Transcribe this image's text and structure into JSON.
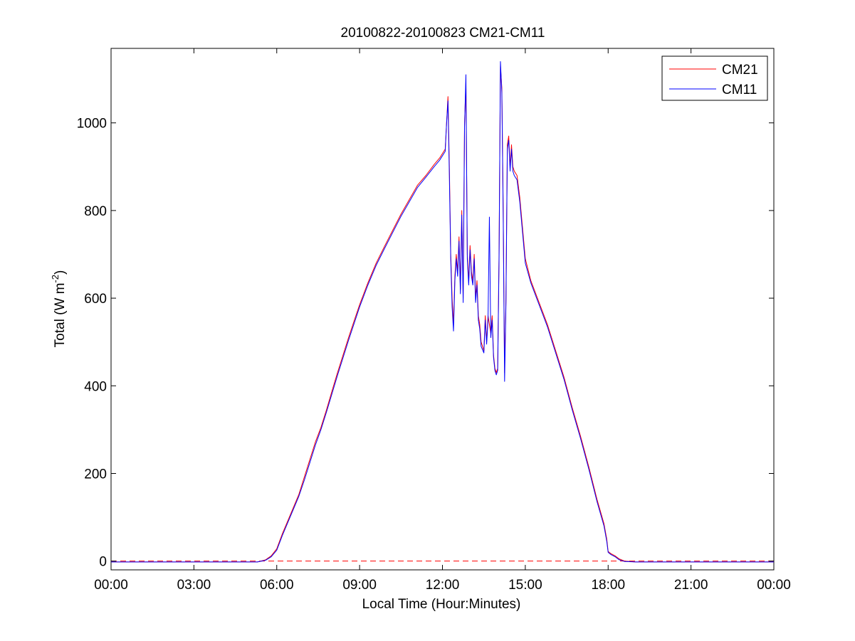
{
  "chart_data": {
    "type": "line",
    "title": "20100822-20100823 CM21-CM11",
    "xlabel": "Local Time (Hour:Minutes)",
    "ylabel": "Total (W m",
    "ylabel_superscript": "-2",
    "ylabel_suffix": ")",
    "xlim": [
      0,
      24
    ],
    "ylim": [
      -20,
      1170
    ],
    "x_ticks": [
      0,
      3,
      6,
      9,
      12,
      15,
      18,
      21,
      24
    ],
    "x_tick_labels": [
      "00:00",
      "03:00",
      "06:00",
      "09:00",
      "12:00",
      "15:00",
      "18:00",
      "21:00",
      "00:00"
    ],
    "y_ticks": [
      0,
      200,
      400,
      600,
      800,
      1000
    ],
    "y_tick_labels": [
      "0",
      "200",
      "400",
      "600",
      "800",
      "1000"
    ],
    "zero_line": {
      "y": 0,
      "style": "dashed",
      "color": "#ff0000"
    },
    "legend_position": "top-right",
    "grid": false,
    "series": [
      {
        "name": "CM21",
        "color": "#ff0000",
        "points": [
          [
            0,
            -2
          ],
          [
            5.3,
            -2
          ],
          [
            5.6,
            3
          ],
          [
            5.8,
            12
          ],
          [
            6.0,
            28
          ],
          [
            6.2,
            62
          ],
          [
            6.4,
            92
          ],
          [
            6.6,
            122
          ],
          [
            6.8,
            152
          ],
          [
            7.0,
            192
          ],
          [
            7.2,
            232
          ],
          [
            7.4,
            272
          ],
          [
            7.6,
            305
          ],
          [
            7.8,
            345
          ],
          [
            8.0,
            388
          ],
          [
            8.2,
            430
          ],
          [
            8.4,
            470
          ],
          [
            8.6,
            510
          ],
          [
            8.8,
            548
          ],
          [
            9.0,
            585
          ],
          [
            9.3,
            635
          ],
          [
            9.6,
            680
          ],
          [
            9.9,
            718
          ],
          [
            10.2,
            755
          ],
          [
            10.5,
            792
          ],
          [
            10.8,
            825
          ],
          [
            11.1,
            858
          ],
          [
            11.4,
            880
          ],
          [
            11.7,
            905
          ],
          [
            11.9,
            920
          ],
          [
            12.1,
            940
          ],
          [
            12.15,
            1000
          ],
          [
            12.2,
            1060
          ],
          [
            12.25,
            900
          ],
          [
            12.3,
            700
          ],
          [
            12.35,
            600
          ],
          [
            12.4,
            540
          ],
          [
            12.45,
            650
          ],
          [
            12.5,
            700
          ],
          [
            12.55,
            660
          ],
          [
            12.6,
            740
          ],
          [
            12.65,
            620
          ],
          [
            12.7,
            800
          ],
          [
            12.75,
            600
          ],
          [
            12.8,
            1000
          ],
          [
            12.85,
            1090
          ],
          [
            12.9,
            700
          ],
          [
            12.95,
            640
          ],
          [
            13.0,
            720
          ],
          [
            13.05,
            660
          ],
          [
            13.1,
            640
          ],
          [
            13.15,
            700
          ],
          [
            13.2,
            600
          ],
          [
            13.25,
            640
          ],
          [
            13.3,
            560
          ],
          [
            13.35,
            540
          ],
          [
            13.4,
            500
          ],
          [
            13.5,
            480
          ],
          [
            13.55,
            560
          ],
          [
            13.6,
            500
          ],
          [
            13.65,
            560
          ],
          [
            13.7,
            540
          ],
          [
            13.75,
            520
          ],
          [
            13.8,
            560
          ],
          [
            13.85,
            470
          ],
          [
            13.9,
            440
          ],
          [
            13.95,
            430
          ],
          [
            14.0,
            440
          ],
          [
            14.05,
            700
          ],
          [
            14.1,
            1130
          ],
          [
            14.15,
            1080
          ],
          [
            14.2,
            800
          ],
          [
            14.25,
            430
          ],
          [
            14.3,
            600
          ],
          [
            14.35,
            950
          ],
          [
            14.4,
            970
          ],
          [
            14.45,
            900
          ],
          [
            14.5,
            950
          ],
          [
            14.55,
            900
          ],
          [
            14.6,
            890
          ],
          [
            14.7,
            880
          ],
          [
            14.8,
            830
          ],
          [
            14.9,
            760
          ],
          [
            15.0,
            690
          ],
          [
            15.2,
            640
          ],
          [
            15.5,
            590
          ],
          [
            15.8,
            540
          ],
          [
            16.1,
            480
          ],
          [
            16.4,
            420
          ],
          [
            16.7,
            350
          ],
          [
            17.0,
            285
          ],
          [
            17.3,
            215
          ],
          [
            17.6,
            140
          ],
          [
            17.85,
            85
          ],
          [
            17.95,
            50
          ],
          [
            18.0,
            22
          ],
          [
            18.1,
            17
          ],
          [
            18.25,
            12
          ],
          [
            18.4,
            5
          ],
          [
            18.6,
            0
          ],
          [
            19.0,
            -2
          ],
          [
            24,
            -2
          ]
        ]
      },
      {
        "name": "CM11",
        "color": "#0000ff",
        "points": [
          [
            0,
            -2
          ],
          [
            5.3,
            -2
          ],
          [
            5.6,
            2
          ],
          [
            5.8,
            10
          ],
          [
            6.0,
            25
          ],
          [
            6.2,
            58
          ],
          [
            6.4,
            88
          ],
          [
            6.6,
            118
          ],
          [
            6.8,
            148
          ],
          [
            7.0,
            185
          ],
          [
            7.2,
            225
          ],
          [
            7.4,
            265
          ],
          [
            7.6,
            300
          ],
          [
            7.8,
            340
          ],
          [
            8.0,
            382
          ],
          [
            8.2,
            424
          ],
          [
            8.4,
            464
          ],
          [
            8.6,
            504
          ],
          [
            8.8,
            542
          ],
          [
            9.0,
            580
          ],
          [
            9.3,
            630
          ],
          [
            9.6,
            675
          ],
          [
            9.9,
            713
          ],
          [
            10.2,
            750
          ],
          [
            10.5,
            787
          ],
          [
            10.8,
            820
          ],
          [
            11.1,
            853
          ],
          [
            11.4,
            876
          ],
          [
            11.7,
            900
          ],
          [
            11.9,
            915
          ],
          [
            12.1,
            935
          ],
          [
            12.15,
            1000
          ],
          [
            12.2,
            1050
          ],
          [
            12.25,
            880
          ],
          [
            12.3,
            690
          ],
          [
            12.35,
            580
          ],
          [
            12.4,
            525
          ],
          [
            12.45,
            640
          ],
          [
            12.5,
            690
          ],
          [
            12.55,
            650
          ],
          [
            12.6,
            730
          ],
          [
            12.65,
            610
          ],
          [
            12.7,
            790
          ],
          [
            12.75,
            590
          ],
          [
            12.8,
            990
          ],
          [
            12.85,
            1110
          ],
          [
            12.9,
            690
          ],
          [
            12.95,
            630
          ],
          [
            13.0,
            710
          ],
          [
            13.05,
            650
          ],
          [
            13.1,
            630
          ],
          [
            13.15,
            690
          ],
          [
            13.2,
            590
          ],
          [
            13.25,
            630
          ],
          [
            13.3,
            550
          ],
          [
            13.35,
            530
          ],
          [
            13.4,
            490
          ],
          [
            13.5,
            475
          ],
          [
            13.55,
            550
          ],
          [
            13.6,
            495
          ],
          [
            13.65,
            550
          ],
          [
            13.7,
            785
          ],
          [
            13.75,
            510
          ],
          [
            13.8,
            550
          ],
          [
            13.85,
            465
          ],
          [
            13.9,
            435
          ],
          [
            13.95,
            425
          ],
          [
            14.0,
            435
          ],
          [
            14.05,
            690
          ],
          [
            14.1,
            1140
          ],
          [
            14.15,
            1070
          ],
          [
            14.2,
            790
          ],
          [
            14.25,
            410
          ],
          [
            14.3,
            590
          ],
          [
            14.35,
            940
          ],
          [
            14.4,
            960
          ],
          [
            14.45,
            890
          ],
          [
            14.5,
            940
          ],
          [
            14.55,
            890
          ],
          [
            14.6,
            880
          ],
          [
            14.7,
            870
          ],
          [
            14.8,
            820
          ],
          [
            14.9,
            750
          ],
          [
            15.0,
            680
          ],
          [
            15.2,
            635
          ],
          [
            15.5,
            585
          ],
          [
            15.8,
            535
          ],
          [
            16.1,
            475
          ],
          [
            16.4,
            415
          ],
          [
            16.7,
            345
          ],
          [
            17.0,
            280
          ],
          [
            17.3,
            210
          ],
          [
            17.6,
            135
          ],
          [
            17.85,
            80
          ],
          [
            17.95,
            45
          ],
          [
            18.0,
            20
          ],
          [
            18.1,
            15
          ],
          [
            18.25,
            10
          ],
          [
            18.4,
            3
          ],
          [
            18.6,
            -1
          ],
          [
            19.0,
            -2
          ],
          [
            24,
            -2
          ]
        ]
      }
    ]
  }
}
